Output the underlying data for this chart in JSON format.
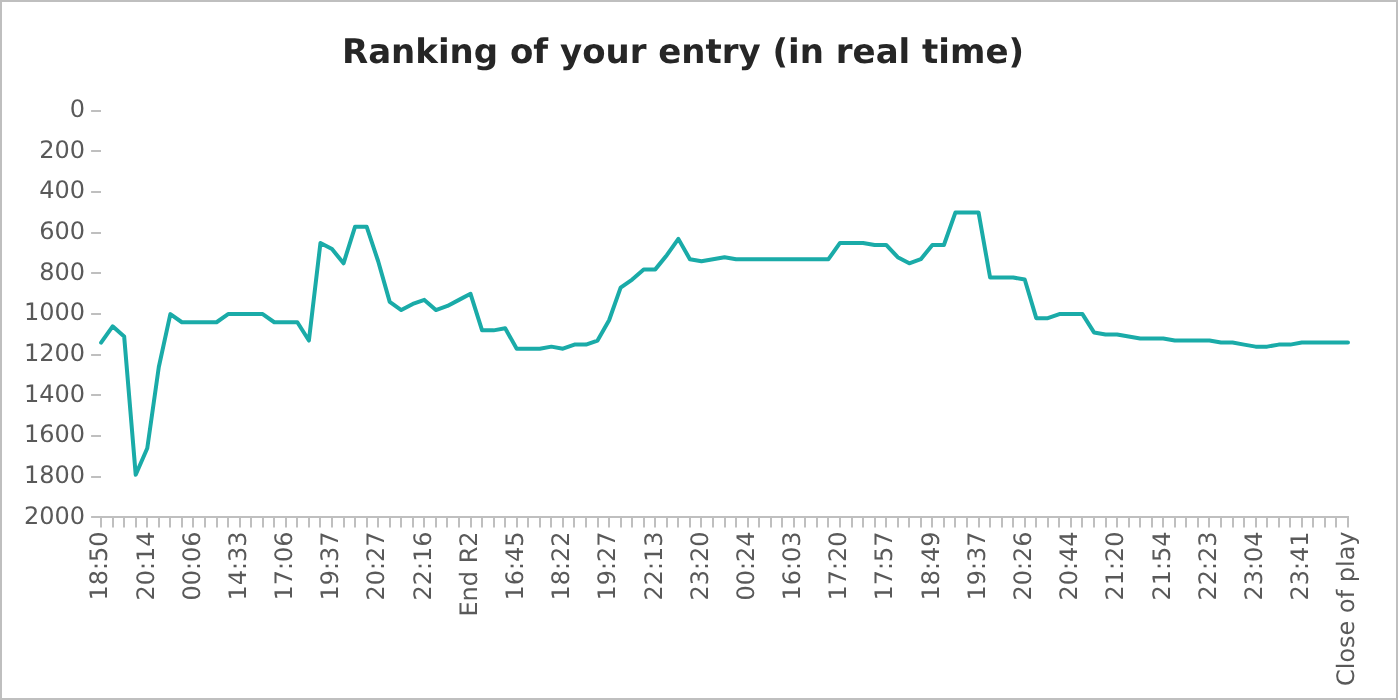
{
  "chart_data": {
    "type": "line",
    "title": "Ranking of your entry (in real time)",
    "categories": [
      "18:50",
      null,
      null,
      null,
      "20:14",
      null,
      null,
      null,
      "00:06",
      null,
      null,
      null,
      "14:33",
      null,
      null,
      null,
      "17:06",
      null,
      null,
      null,
      "19:37",
      null,
      null,
      null,
      "20:27",
      null,
      null,
      null,
      "22:16",
      null,
      null,
      null,
      "End R2",
      null,
      null,
      null,
      "16:45",
      null,
      null,
      null,
      "18:22",
      null,
      null,
      null,
      "19:27",
      null,
      null,
      null,
      "22:13",
      null,
      null,
      null,
      "23:20",
      null,
      null,
      null,
      "00:24",
      null,
      null,
      null,
      "16:03",
      null,
      null,
      null,
      "17:20",
      null,
      null,
      null,
      "17:57",
      null,
      null,
      null,
      "18:49",
      null,
      null,
      null,
      "19:37",
      null,
      null,
      null,
      "20:26",
      null,
      null,
      null,
      "20:44",
      null,
      null,
      null,
      "21:20",
      null,
      null,
      null,
      "21:54",
      null,
      null,
      null,
      "22:23",
      null,
      null,
      null,
      "23:04",
      null,
      null,
      null,
      "23:41",
      null,
      null,
      null,
      "Close of play"
    ],
    "series": [
      {
        "color": "#1aaba8",
        "values": [
          1140,
          1060,
          1110,
          1790,
          1660,
          1260,
          1000,
          1040,
          1040,
          1040,
          1040,
          1000,
          1000,
          1000,
          1000,
          1040,
          1040,
          1040,
          1130,
          650,
          680,
          750,
          570,
          570,
          740,
          940,
          980,
          950,
          930,
          980,
          960,
          930,
          900,
          1080,
          1080,
          1070,
          1170,
          1170,
          1170,
          1160,
          1170,
          1150,
          1150,
          1130,
          1030,
          870,
          830,
          780,
          780,
          710,
          630,
          730,
          740,
          730,
          720,
          730,
          730,
          730,
          730,
          730,
          730,
          730,
          730,
          730,
          650,
          650,
          650,
          660,
          660,
          720,
          750,
          730,
          660,
          660,
          500,
          500,
          500,
          820,
          820,
          820,
          830,
          1020,
          1020,
          1000,
          1000,
          1000,
          1090,
          1100,
          1100,
          1110,
          1120,
          1120,
          1120,
          1130,
          1130,
          1130,
          1130,
          1140,
          1140,
          1150,
          1160,
          1160,
          1150,
          1150,
          1140,
          1140,
          1140,
          1140,
          1140
        ]
      }
    ],
    "ylim": [
      2000,
      0
    ],
    "yticks": [
      0,
      200,
      400,
      600,
      800,
      1000,
      1200,
      1400,
      1600,
      1800,
      2000
    ],
    "grid": false,
    "legend": false,
    "marker": "none",
    "line_style": "solid"
  }
}
